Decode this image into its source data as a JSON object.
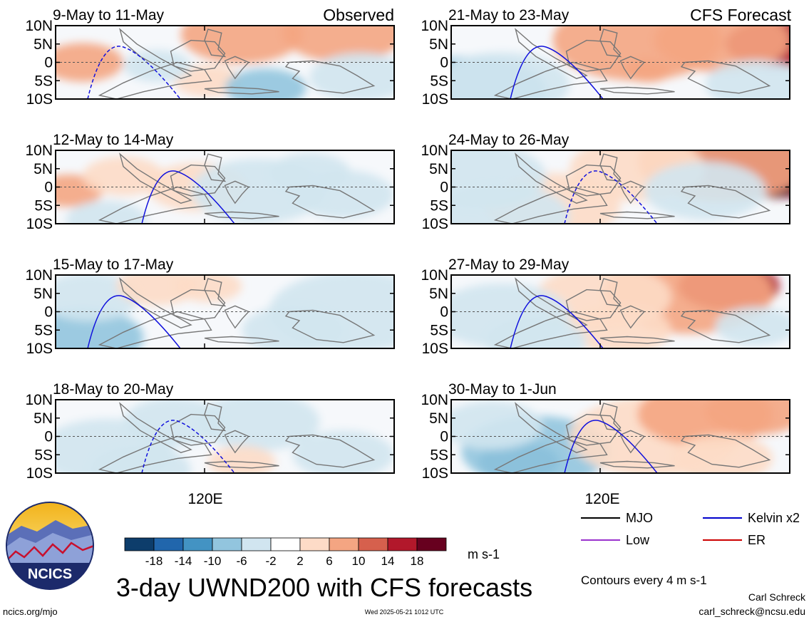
{
  "header": {
    "observed_label": "Observed",
    "forecast_label": "CFS Forecast"
  },
  "axes": {
    "y_ticks": [
      "10N",
      "5N",
      "0",
      "5S",
      "10S"
    ],
    "x_tick": "120E"
  },
  "chart_data": [
    {
      "type": "heatmap",
      "title": "9-May to 11-May",
      "column": "Observed",
      "hotspots": [
        {
          "x": 0.08,
          "y": 0.5,
          "r": 0.12,
          "v": 6
        },
        {
          "x": 0.55,
          "y": 0.12,
          "r": 0.18,
          "v": 6
        },
        {
          "x": 0.85,
          "y": 0.1,
          "r": 0.18,
          "v": 6
        },
        {
          "x": 0.45,
          "y": 0.75,
          "r": 0.1,
          "v": 4
        },
        {
          "x": 0.62,
          "y": 0.85,
          "r": 0.12,
          "v": -10
        },
        {
          "x": 0.9,
          "y": 0.7,
          "r": 0.15,
          "v": -6
        },
        {
          "x": 0.3,
          "y": 0.55,
          "r": 0.1,
          "v": -4
        }
      ]
    },
    {
      "type": "heatmap",
      "title": "21-May to 23-May",
      "column": "CFS Forecast",
      "hotspots": [
        {
          "x": 0.06,
          "y": 0.9,
          "r": 0.22,
          "v": -10
        },
        {
          "x": 0.15,
          "y": 0.8,
          "r": 0.2,
          "v": -6
        },
        {
          "x": 0.55,
          "y": 0.2,
          "r": 0.25,
          "v": 6
        },
        {
          "x": 0.96,
          "y": 0.25,
          "r": 0.15,
          "v": 14
        },
        {
          "x": 0.8,
          "y": 0.2,
          "r": 0.2,
          "v": 8
        },
        {
          "x": 0.58,
          "y": 0.62,
          "r": 0.07,
          "v": 6
        },
        {
          "x": 0.9,
          "y": 0.8,
          "r": 0.15,
          "v": -6
        }
      ]
    },
    {
      "type": "heatmap",
      "title": "12-May to 14-May",
      "hotspots": [
        {
          "x": 0.04,
          "y": 0.55,
          "r": 0.1,
          "v": 8
        },
        {
          "x": 0.2,
          "y": 0.35,
          "r": 0.12,
          "v": 4
        },
        {
          "x": 0.42,
          "y": 0.5,
          "r": 0.15,
          "v": 4
        },
        {
          "x": 0.6,
          "y": 0.55,
          "r": 0.2,
          "v": -6
        },
        {
          "x": 0.75,
          "y": 0.3,
          "r": 0.12,
          "v": -4
        },
        {
          "x": 0.85,
          "y": 0.6,
          "r": 0.15,
          "v": -4
        },
        {
          "x": 0.15,
          "y": 0.95,
          "r": 0.12,
          "v": -6
        }
      ]
    },
    {
      "type": "heatmap",
      "title": "24-May to 26-May",
      "hotspots": [
        {
          "x": 0.96,
          "y": 0.1,
          "r": 0.25,
          "v": 18
        },
        {
          "x": 0.8,
          "y": 0.15,
          "r": 0.25,
          "v": 8
        },
        {
          "x": 0.55,
          "y": 0.25,
          "r": 0.2,
          "v": 4
        },
        {
          "x": 0.3,
          "y": 0.75,
          "r": 0.2,
          "v": 4
        },
        {
          "x": 0.08,
          "y": 0.35,
          "r": 0.2,
          "v": -6
        },
        {
          "x": 0.15,
          "y": 0.9,
          "r": 0.2,
          "v": -6
        },
        {
          "x": 0.75,
          "y": 0.55,
          "r": 0.18,
          "v": -4
        }
      ]
    },
    {
      "type": "heatmap",
      "title": "15-May to 17-May",
      "hotspots": [
        {
          "x": 0.08,
          "y": 0.85,
          "r": 0.18,
          "v": -8
        },
        {
          "x": 0.1,
          "y": 0.3,
          "r": 0.15,
          "v": -4
        },
        {
          "x": 0.3,
          "y": 0.15,
          "r": 0.12,
          "v": 4
        },
        {
          "x": 0.45,
          "y": 0.15,
          "r": 0.1,
          "v": 4
        },
        {
          "x": 0.88,
          "y": 0.5,
          "r": 0.25,
          "v": -6
        },
        {
          "x": 0.7,
          "y": 0.75,
          "r": 0.15,
          "v": -4
        }
      ]
    },
    {
      "type": "heatmap",
      "title": "27-May to 29-May",
      "hotspots": [
        {
          "x": 0.82,
          "y": 0.15,
          "r": 0.15,
          "v": 14
        },
        {
          "x": 0.7,
          "y": 0.25,
          "r": 0.25,
          "v": 8
        },
        {
          "x": 0.45,
          "y": 0.3,
          "r": 0.2,
          "v": 4
        },
        {
          "x": 0.5,
          "y": 0.75,
          "r": 0.15,
          "v": 4
        },
        {
          "x": 0.15,
          "y": 0.55,
          "r": 0.2,
          "v": -6
        },
        {
          "x": 0.25,
          "y": 0.9,
          "r": 0.15,
          "v": -4
        },
        {
          "x": 0.9,
          "y": 0.7,
          "r": 0.12,
          "v": -4
        }
      ]
    },
    {
      "type": "heatmap",
      "title": "18-May to 20-May",
      "hotspots": [
        {
          "x": 0.15,
          "y": 0.7,
          "r": 0.2,
          "v": -6
        },
        {
          "x": 0.35,
          "y": 0.3,
          "r": 0.15,
          "v": -6
        },
        {
          "x": 0.6,
          "y": 0.3,
          "r": 0.18,
          "v": -4
        },
        {
          "x": 0.85,
          "y": 0.75,
          "r": 0.15,
          "v": -6
        },
        {
          "x": 0.55,
          "y": 0.85,
          "r": 0.1,
          "v": 4
        },
        {
          "x": 0.25,
          "y": 0.95,
          "r": 0.15,
          "v": -4
        }
      ]
    },
    {
      "type": "heatmap",
      "title": "30-May to 1-Jun",
      "hotspots": [
        {
          "x": 0.2,
          "y": 0.85,
          "r": 0.12,
          "v": -14
        },
        {
          "x": 0.25,
          "y": 0.7,
          "r": 0.22,
          "v": -8
        },
        {
          "x": 0.12,
          "y": 0.35,
          "r": 0.15,
          "v": -4
        },
        {
          "x": 0.6,
          "y": 0.5,
          "r": 0.25,
          "v": 4
        },
        {
          "x": 0.75,
          "y": 0.2,
          "r": 0.2,
          "v": 6
        },
        {
          "x": 0.9,
          "y": 0.15,
          "r": 0.15,
          "v": 6
        },
        {
          "x": 0.8,
          "y": 0.8,
          "r": 0.15,
          "v": 4
        }
      ]
    }
  ],
  "colorbar": {
    "tick_labels": [
      "-18",
      "-14",
      "-10",
      "-6",
      "-2",
      "2",
      "6",
      "10",
      "14",
      "18"
    ],
    "colors": [
      "#0d3d6b",
      "#2166ac",
      "#4393c3",
      "#92c5de",
      "#d1e5f0",
      "#ffffff",
      "#fddbc7",
      "#f4a582",
      "#d6604d",
      "#b2182b",
      "#67001f"
    ],
    "unit": "m s-1"
  },
  "legend": [
    {
      "label": "MJO",
      "color": "#000000"
    },
    {
      "label": "Kelvin x2",
      "color": "#0000cc"
    },
    {
      "label": "Low",
      "color": "#9a32cd"
    },
    {
      "label": "ER",
      "color": "#cc0000"
    }
  ],
  "footer": {
    "logo_text": "NCICS",
    "main_title": "3-day UWND200 with CFS forecasts",
    "contours_note": "Contours every 4 m s-1",
    "author": "Carl Schreck",
    "email": "carl_schreck@ncsu.edu",
    "site": "ncics.org/mjo",
    "timestamp": "Wed 2025-05-21 1012 UTC"
  }
}
